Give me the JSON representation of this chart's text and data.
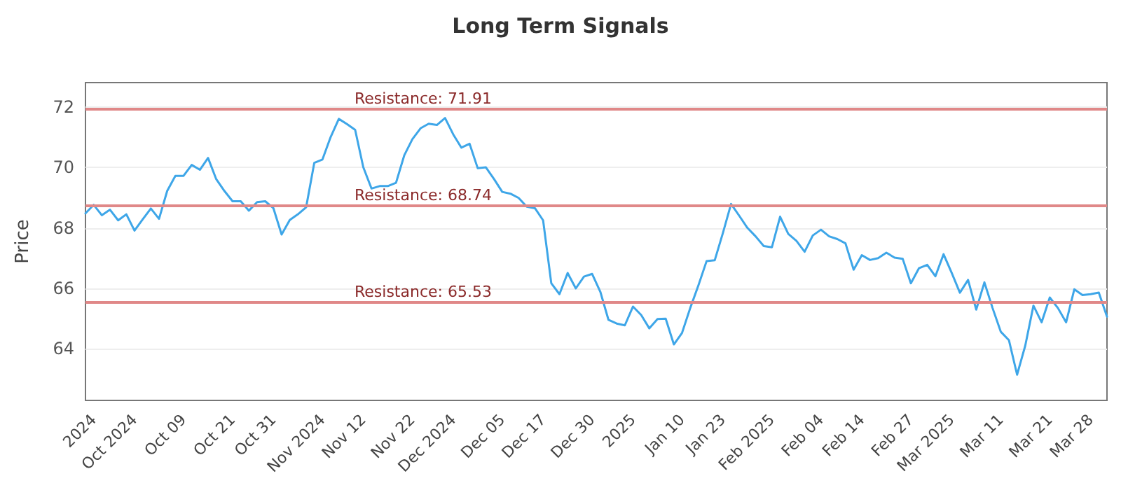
{
  "chart_data": {
    "type": "line",
    "title": "Long Term Signals",
    "ylabel": "Price",
    "categories": [
      null,
      "2024",
      null,
      null,
      null,
      null,
      "Oct 2024",
      null,
      null,
      null,
      null,
      null,
      "Oct 09",
      null,
      null,
      null,
      null,
      null,
      "Oct 21",
      null,
      null,
      null,
      null,
      "Oct 31",
      null,
      null,
      null,
      null,
      null,
      "Nov 2024",
      null,
      null,
      null,
      null,
      "Nov 12",
      null,
      null,
      null,
      null,
      null,
      "Nov 22",
      null,
      null,
      null,
      null,
      "Dec 2024",
      null,
      null,
      null,
      null,
      null,
      "Dec 05",
      null,
      null,
      null,
      null,
      "Dec 17",
      null,
      null,
      null,
      null,
      null,
      "Dec 30",
      null,
      null,
      null,
      null,
      "2025",
      null,
      null,
      null,
      null,
      null,
      "Jan 10",
      null,
      null,
      null,
      null,
      "Jan 23",
      null,
      null,
      null,
      null,
      null,
      "Feb 2025",
      null,
      null,
      null,
      null,
      null,
      "Feb 04",
      null,
      null,
      null,
      null,
      "Feb 14",
      null,
      null,
      null,
      null,
      null,
      "Feb 27",
      null,
      null,
      null,
      null,
      "Mar 2025",
      null,
      null,
      null,
      null,
      null,
      "Mar 11",
      null,
      null,
      null,
      null,
      null,
      "Mar 21",
      null,
      null,
      null,
      null,
      "Mar 28",
      null,
      null
    ],
    "series": [
      {
        "color": "#3ea6e8",
        "values": [
          68.48,
          68.76,
          68.42,
          68.6,
          68.25,
          68.45,
          67.91,
          68.28,
          68.64,
          68.3,
          69.22,
          69.72,
          69.72,
          70.08,
          69.92,
          70.31,
          69.61,
          69.22,
          68.88,
          68.88,
          68.57,
          68.85,
          68.88,
          68.65,
          67.78,
          68.26,
          68.45,
          68.68,
          70.15,
          70.26,
          71.0,
          71.6,
          71.43,
          71.24,
          70.0,
          69.3,
          69.38,
          69.38,
          69.49,
          70.39,
          70.93,
          71.29,
          71.44,
          71.4,
          71.63,
          71.09,
          70.65,
          70.78,
          69.97,
          70.0,
          69.61,
          69.19,
          69.13,
          68.99,
          68.7,
          68.65,
          68.25,
          66.17,
          65.81,
          66.51,
          66.0,
          66.39,
          66.48,
          65.89,
          64.96,
          64.84,
          64.78,
          65.4,
          65.12,
          64.68,
          64.99,
          65.0,
          64.15,
          64.53,
          65.35,
          66.1,
          66.9,
          66.93,
          67.83,
          68.79,
          68.4,
          68.0,
          67.72,
          67.4,
          67.36,
          68.37,
          67.8,
          67.57,
          67.21,
          67.75,
          67.94,
          67.72,
          67.63,
          67.49,
          66.62,
          67.1,
          66.94,
          67.0,
          67.18,
          67.02,
          66.98,
          66.17,
          66.67,
          66.78,
          66.4,
          67.13,
          66.51,
          65.86,
          66.28,
          65.3,
          66.2,
          65.35,
          64.57,
          64.29,
          63.15,
          64.11,
          65.43,
          64.88,
          65.7,
          65.35,
          64.88,
          65.97,
          65.78,
          65.81,
          65.86,
          65.07
        ]
      }
    ],
    "ylim": [
      62.3,
      72.8
    ],
    "yticks": [
      64,
      66,
      68,
      70,
      72
    ],
    "grid": "y",
    "marker": "none",
    "line_style": "solid",
    "ref_lines": [
      {
        "axis": "y",
        "value": 71.91,
        "label": "Resistance: 71.91",
        "color": "#e08888"
      },
      {
        "axis": "y",
        "value": 68.74,
        "label": "Resistance: 68.74",
        "color": "#e08888"
      },
      {
        "axis": "y",
        "value": 65.53,
        "label": "Resistance: 65.53",
        "color": "#e08888"
      }
    ]
  }
}
